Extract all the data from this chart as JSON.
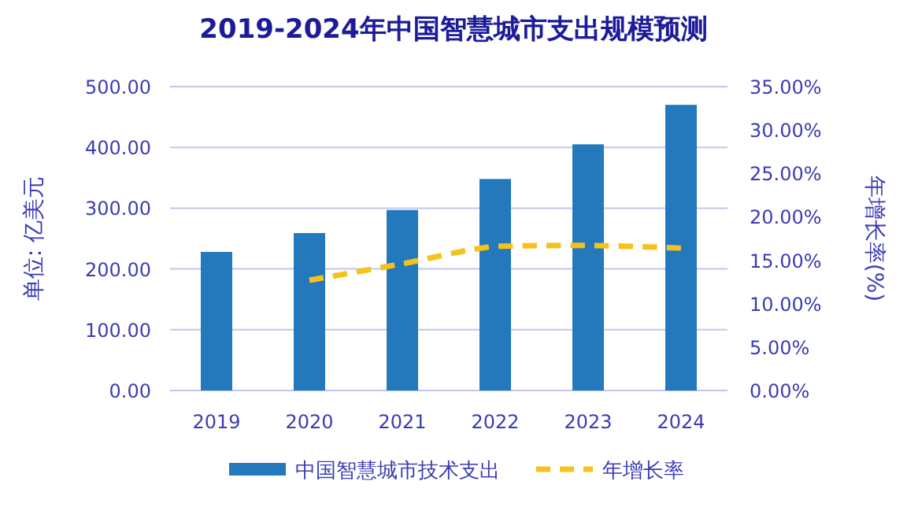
{
  "chart_data": {
    "type": "bar",
    "title": "2019-2024年中国智慧城市支出规模预测",
    "ylabel": "单位: 亿美元",
    "y2label": "年增长率(%)",
    "categories": [
      "2019",
      "2020",
      "2021",
      "2022",
      "2023",
      "2024"
    ],
    "series": [
      {
        "name": "中国智慧城市技术支出",
        "color": "#2478bc",
        "values": [
          228,
          259,
          297,
          348,
          405,
          470
        ]
      },
      {
        "name": "年增长率",
        "type": "line",
        "axis": "y2",
        "color": "#f5c21b",
        "line_style": "dashed",
        "values": [
          null,
          12.7,
          14.6,
          16.6,
          16.7,
          16.4
        ]
      }
    ],
    "ylim": [
      0,
      500
    ],
    "yticks": [
      {
        "value": 0,
        "label": "0.00"
      },
      {
        "value": 100,
        "label": "100.00"
      },
      {
        "value": 200,
        "label": "200.00"
      },
      {
        "value": 300,
        "label": "300.00"
      },
      {
        "value": 400,
        "label": "400.00"
      },
      {
        "value": 500,
        "label": "500.00"
      }
    ],
    "y2lim": [
      0,
      35
    ],
    "y2ticks": [
      {
        "value": 0,
        "label": "0.00%"
      },
      {
        "value": 5,
        "label": "5.00%"
      },
      {
        "value": 10,
        "label": "10.00%"
      },
      {
        "value": 15,
        "label": "15.00%"
      },
      {
        "value": 20,
        "label": "20.00%"
      },
      {
        "value": 25,
        "label": "25.00%"
      },
      {
        "value": 30,
        "label": "30.00%"
      },
      {
        "value": 35,
        "label": "35.00%"
      }
    ],
    "grid": "y",
    "legend": "bottom"
  }
}
